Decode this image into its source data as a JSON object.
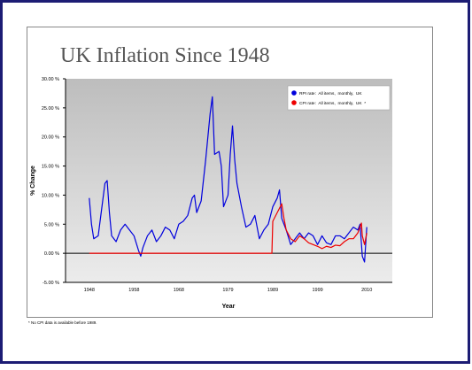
{
  "chart_data": {
    "type": "line",
    "title": "UK Inflation Since 1948",
    "x_label": "Year",
    "y_label": "% Change",
    "footnote": "* No CPI data is available before 1989.",
    "xlim": [
      1942.7,
      2015.7
    ],
    "xticks": [
      1948,
      1958,
      1968,
      1979,
      1989,
      1999,
      2010
    ],
    "ylim": [
      -5,
      30
    ],
    "yticks": [
      {
        "value": -5,
        "label": "-5.00 %"
      },
      {
        "value": 0,
        "label": "0.00 %"
      },
      {
        "value": 5,
        "label": "5.00 %"
      },
      {
        "value": 10,
        "label": "10.00 %"
      },
      {
        "value": 15,
        "label": "15.00 %"
      },
      {
        "value": 20,
        "label": "20.00 %"
      },
      {
        "value": 25,
        "label": "25.00 %"
      },
      {
        "value": 30,
        "label": "30.00 %"
      }
    ],
    "legend": "top-right",
    "series": [
      {
        "name": "RPI rate:  All items,  monthly,  UK",
        "color": "#0000dd",
        "x": [
          1948,
          1948.5,
          1949,
          1950,
          1951,
          1951.5,
          1952,
          1952.5,
          1953,
          1954,
          1955,
          1956,
          1957,
          1958,
          1959,
          1959.5,
          1960,
          1961,
          1962,
          1963,
          1964,
          1965,
          1966,
          1967,
          1968,
          1969,
          1970,
          1971,
          1971.5,
          1972,
          1973,
          1974,
          1975,
          1975.5,
          1976,
          1977,
          1977.5,
          1978,
          1979,
          1979.5,
          1980,
          1980.5,
          1981,
          1982,
          1983,
          1984,
          1985,
          1986,
          1987,
          1988,
          1989,
          1990,
          1990.5,
          1991,
          1992,
          1993,
          1994,
          1995,
          1996,
          1997,
          1998,
          1999,
          2000,
          2001,
          2002,
          2003,
          2004,
          2005,
          2006,
          2007,
          2008,
          2008.5,
          2009,
          2009.5,
          2010
        ],
        "values": [
          9.5,
          5,
          2.5,
          3,
          9,
          12,
          12.5,
          7,
          3,
          2,
          4,
          5,
          4,
          3,
          0.5,
          -0.5,
          1,
          3,
          4,
          2,
          3,
          4.5,
          4,
          2.5,
          5,
          5.5,
          6.5,
          9.5,
          10,
          7,
          9,
          16,
          24,
          26.9,
          17,
          17.5,
          15,
          8,
          10,
          17,
          21.9,
          16,
          12,
          8,
          4.5,
          5,
          6.5,
          2.5,
          4,
          5,
          8,
          9.5,
          10.9,
          6,
          4,
          1.5,
          2.5,
          3.5,
          2.5,
          3.5,
          3,
          1.5,
          3,
          1.8,
          1.5,
          3,
          3,
          2.5,
          3.5,
          4.5,
          4,
          5,
          -0.5,
          -1.5,
          4.5
        ]
      },
      {
        "name": "CPI rate:  All items,  monthly,  UK  *",
        "color": "#ee0000",
        "x": [
          1948,
          1988.8,
          1989,
          1990,
          1991,
          1991.5,
          1992,
          1993,
          1994,
          1995,
          1996,
          1997,
          1998,
          1999,
          2000,
          2001,
          2002,
          2003,
          2004,
          2005,
          2006,
          2007,
          2008,
          2008.8,
          2009,
          2009.5,
          2010
        ],
        "values": [
          0,
          0,
          5.5,
          7,
          8.5,
          6,
          4,
          2.5,
          2,
          3,
          2.5,
          1.8,
          1.5,
          1.2,
          0.8,
          1.2,
          1,
          1.4,
          1.3,
          2,
          2.5,
          2.5,
          3.5,
          5.2,
          3,
          1.5,
          3.5
        ]
      }
    ]
  }
}
